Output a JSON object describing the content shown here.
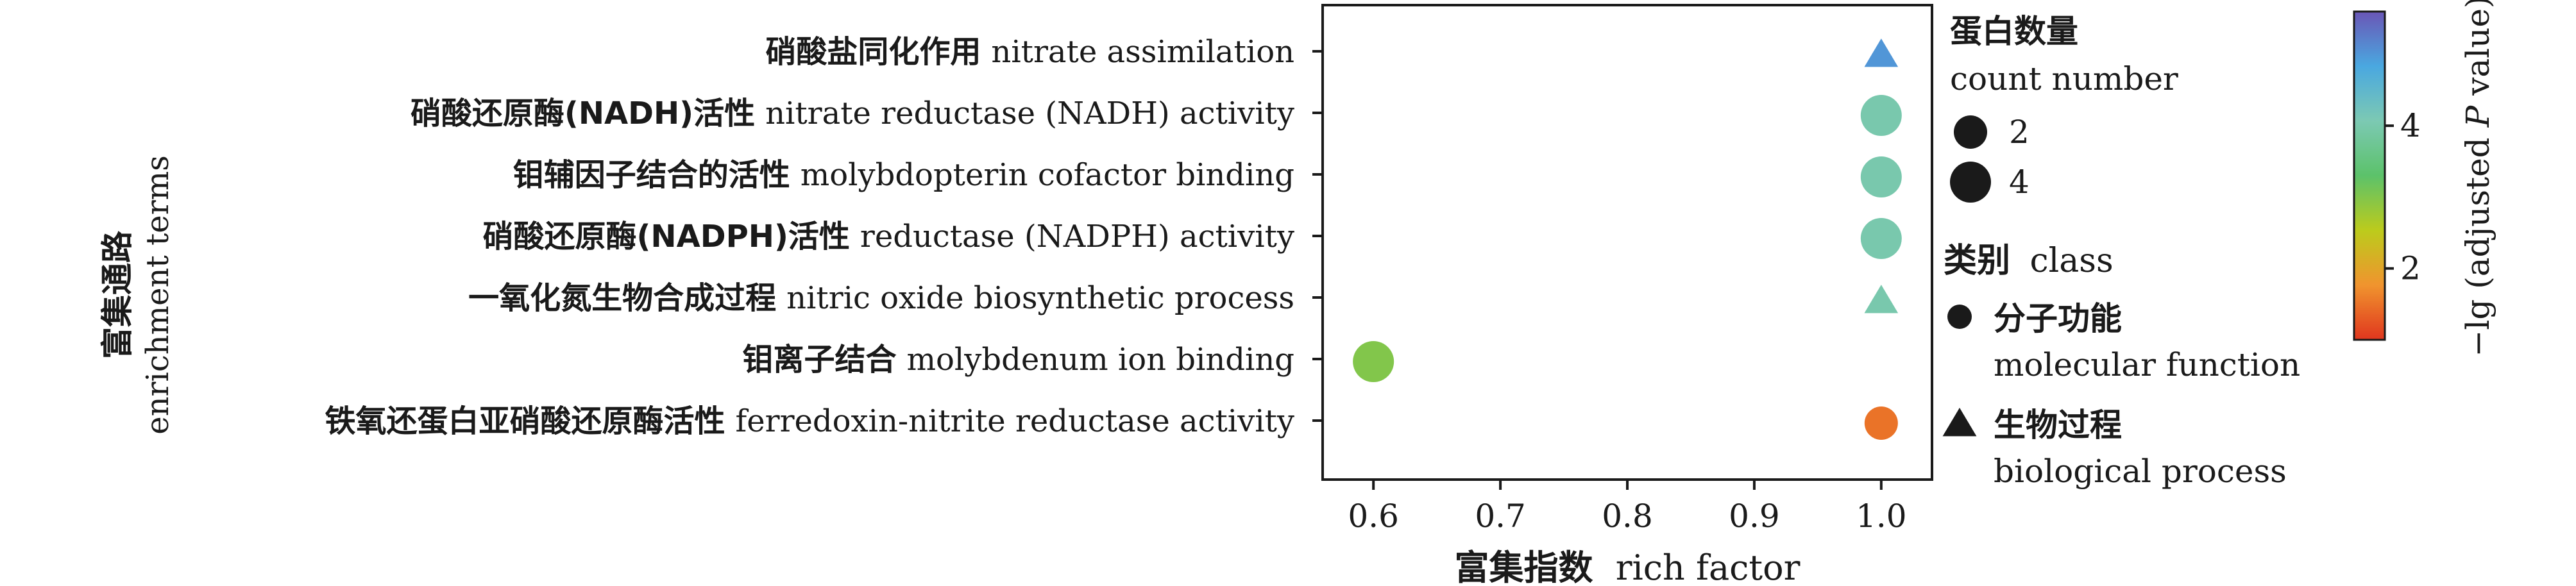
{
  "chart_data": {
    "type": "scatter",
    "title": "",
    "xlabel_cn": "富集指数",
    "xlabel_en": "rich factor",
    "ylabel_cn": "富集通路",
    "ylabel_en": "enrichment terms",
    "xlim": [
      0.56,
      1.04
    ],
    "x_ticks": [
      "0.6",
      "0.7",
      "0.8",
      "0.9",
      "1.0"
    ],
    "grid": false,
    "terms": [
      {
        "cn": "硝酸盐同化作用",
        "en": "nitrate assimilation",
        "x": 1.0,
        "count": 2,
        "neg_log_p": 5.0,
        "class": "biological_process"
      },
      {
        "cn": "硝酸还原酶(NADH)活性",
        "en": "nitrate reductase (NADH) activity",
        "x": 1.0,
        "count": 4,
        "neg_log_p": 4.0,
        "class": "molecular_function"
      },
      {
        "cn": "钼辅因子结合的活性",
        "en": "molybdopterin cofactor binding",
        "x": 1.0,
        "count": 4,
        "neg_log_p": 4.0,
        "class": "molecular_function"
      },
      {
        "cn": "硝酸还原酶(NADPH)活性",
        "en": "reductase (NADPH) activity",
        "x": 1.0,
        "count": 4,
        "neg_log_p": 4.0,
        "class": "molecular_function"
      },
      {
        "cn": "一氧化氮生物合成过程",
        "en": "nitric oxide biosynthetic process",
        "x": 1.0,
        "count": 2,
        "neg_log_p": 4.0,
        "class": "biological_process"
      },
      {
        "cn": "钼离子结合",
        "en": "molybdenum ion binding",
        "x": 0.6,
        "count": 4,
        "neg_log_p": 3.0,
        "class": "molecular_function"
      },
      {
        "cn": "铁氧还蛋白亚硝酸还原酶活性",
        "en": "ferredoxin-nitrite reductase activity",
        "x": 1.0,
        "count": 2,
        "neg_log_p": 1.5,
        "class": "molecular_function"
      }
    ],
    "legend_count": {
      "title_cn": "蛋白数量",
      "title_en": "count number",
      "entries": [
        {
          "label": "2",
          "count": 2
        },
        {
          "label": "4",
          "count": 4
        }
      ]
    },
    "legend_class": {
      "title_cn": "类别",
      "title_en": "class",
      "entries": [
        {
          "key": "molecular_function",
          "shape": "circle",
          "cn": "分子功能",
          "en": "molecular function"
        },
        {
          "key": "biological_process",
          "shape": "triangle",
          "cn": "生物过程",
          "en": "biological process"
        }
      ]
    },
    "colorbar": {
      "label_pre": "−lg (adjusted ",
      "label_italic": "P",
      "label_post": " value)",
      "range": [
        1.0,
        5.6
      ],
      "ticks": [
        "2",
        "4"
      ],
      "colors": [
        "#e0361e",
        "#f0942e",
        "#bccb1c",
        "#5cc26a",
        "#7cc9b3",
        "#4aa8e0",
        "#6a56b6"
      ]
    }
  }
}
